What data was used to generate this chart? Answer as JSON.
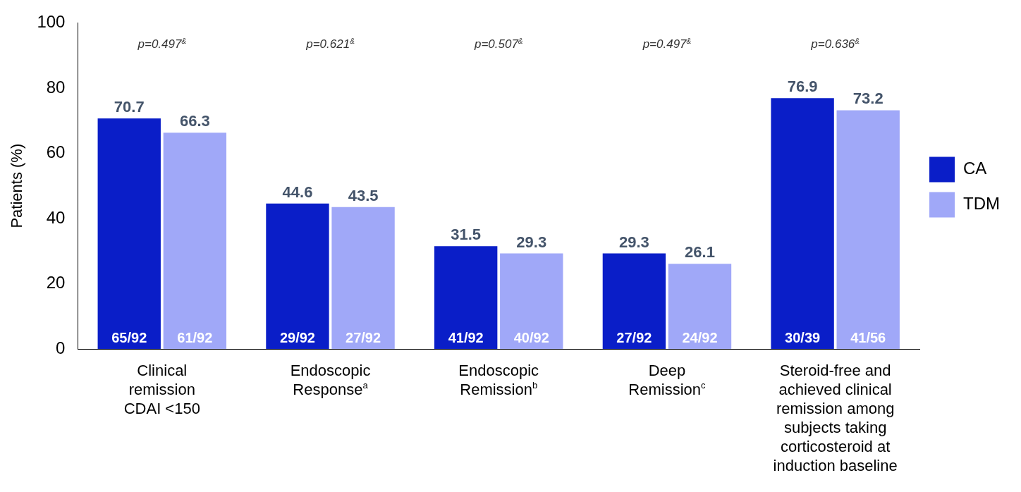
{
  "chart_data": {
    "type": "bar",
    "ylabel": "Patients (%)",
    "categories": [
      "Clinical\nremission\nCDAI <150",
      "Endoscopic\nResponse$^{a}$",
      "Endoscopic\nRemission$^{b}$",
      "Deep\nRemission$^{c}$",
      "Steroid-free and\nachieved clinical\nremission among\nsubjects taking\ncorticosteroid at\ninduction baseline"
    ],
    "series": [
      {
        "name": "CA",
        "color": "#0a1ec8",
        "values": [
          70.7,
          44.6,
          31.5,
          29.3,
          76.9
        ]
      },
      {
        "name": "TDM",
        "color": "#a0a8f8",
        "values": [
          66.3,
          43.5,
          29.3,
          26.1,
          73.2
        ]
      }
    ],
    "ylim": [
      0,
      100
    ],
    "yticks": [
      0,
      20,
      40,
      60,
      80,
      100
    ],
    "grid": false,
    "legend": "right",
    "data_labels": true,
    "annotations": [
      "p=0.497$^{&}$",
      "p=0.621$^{&}$",
      "p=0.507$^{&}$",
      "p=0.497$^{&}$",
      "p=0.636$^{&}$",
      "65/92",
      "29/92",
      "41/92",
      "27/92",
      "30/39",
      "61/92",
      "27/92",
      "40/92",
      "24/92",
      "41/56"
    ]
  }
}
